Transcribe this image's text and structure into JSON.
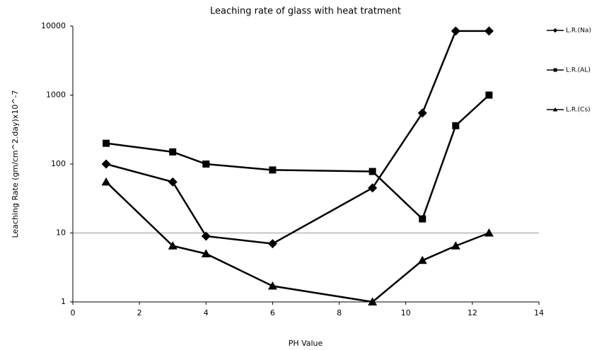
{
  "chart_data": {
    "type": "line",
    "title": "Leaching rate of glass with heat tratment",
    "x_label": "PH Value",
    "y_label": "Leaching Rate (gm/cm^2.day)x10^-7",
    "x": [
      1,
      3,
      4,
      6,
      9,
      10.5,
      11.5,
      12.5
    ],
    "series": [
      {
        "name": "L.R.(Na)",
        "color": "#000000",
        "marker": "diamond",
        "values": [
          100,
          55,
          9,
          7,
          45,
          550,
          8500,
          8500
        ]
      },
      {
        "name": "L.R.(AL)",
        "color": "#000000",
        "marker": "square",
        "values": [
          200,
          150,
          100,
          82,
          78,
          16,
          360,
          1000
        ]
      },
      {
        "name": "L.R.(Cs)",
        "color": "#000000",
        "marker": "triangle",
        "values": [
          55,
          6.5,
          5,
          1.7,
          1,
          4,
          6.5,
          10
        ]
      }
    ],
    "xlim": [
      0,
      14
    ],
    "xticks": [
      0,
      2,
      4,
      6,
      8,
      10,
      12,
      14
    ],
    "ylim": [
      1,
      10000
    ],
    "yticks": [
      1,
      10,
      100,
      1000,
      10000
    ],
    "y_scale": "log",
    "reference_lines": [
      10
    ],
    "legend": "right"
  }
}
